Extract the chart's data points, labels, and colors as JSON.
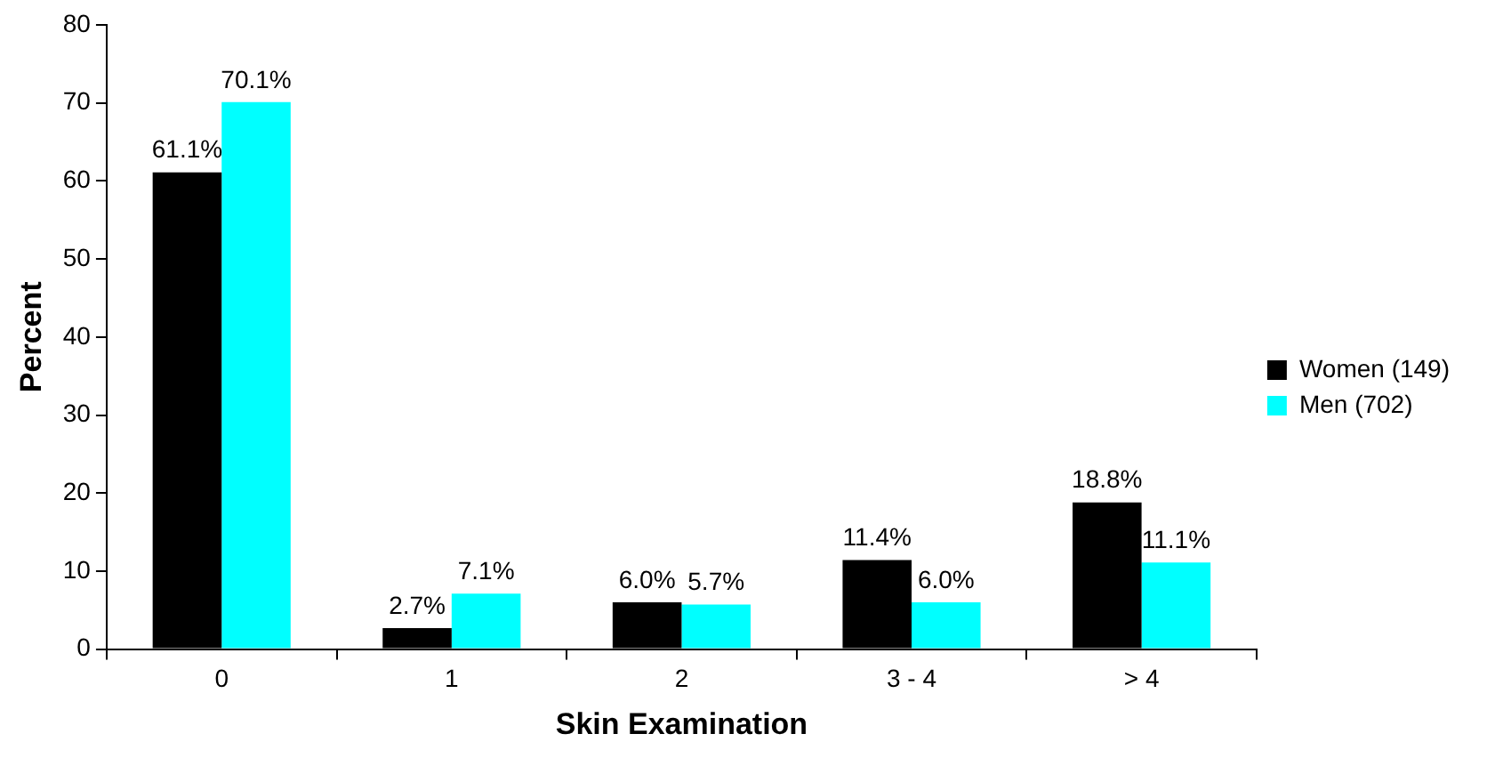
{
  "chart_data": {
    "type": "bar",
    "xlabel": "Skin Examination",
    "ylabel": "Percent",
    "categories": [
      "0",
      "1",
      "2",
      "3 - 4",
      "> 4"
    ],
    "series": [
      {
        "name": "Women (149)",
        "color": "#000000",
        "values": [
          61.1,
          2.7,
          6.0,
          11.4,
          18.8
        ],
        "value_labels": [
          "61.1%",
          "2.7%",
          "6.0%",
          "11.4%",
          "18.8%"
        ]
      },
      {
        "name": "Men (702)",
        "color": "#00ffff",
        "values": [
          70.1,
          7.1,
          5.7,
          6.0,
          11.1
        ],
        "value_labels": [
          "70.1%",
          "7.1%",
          "5.7%",
          "6.0%",
          "11.1%"
        ]
      }
    ],
    "ylim": [
      0,
      80
    ],
    "yticks": [
      0,
      10,
      20,
      30,
      40,
      50,
      60,
      70,
      80
    ],
    "grid": false,
    "legend": "right"
  }
}
